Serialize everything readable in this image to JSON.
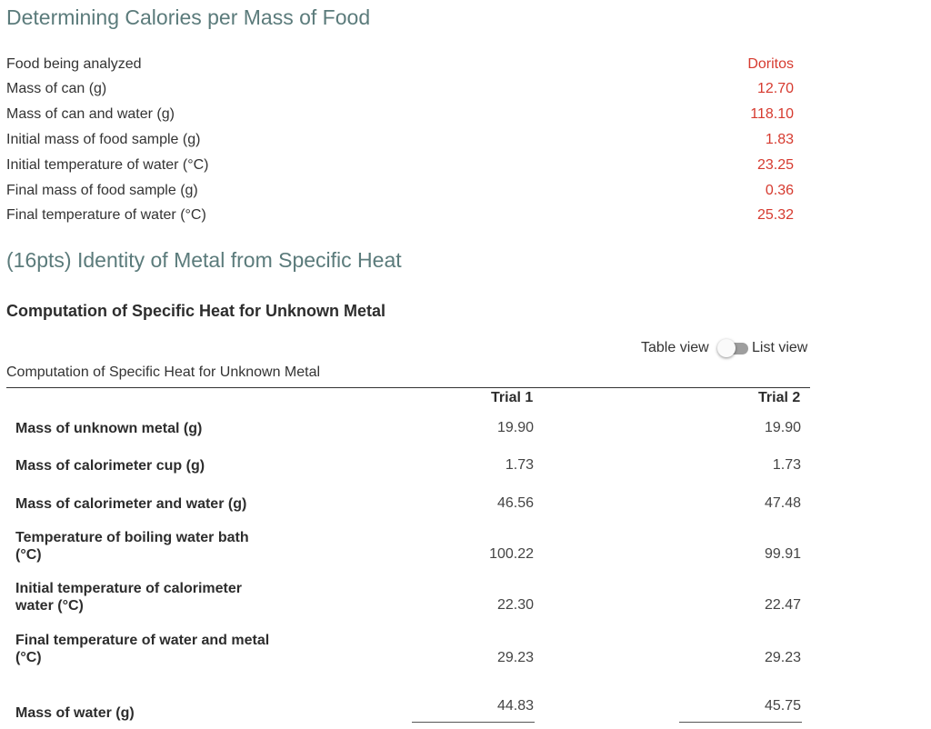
{
  "calories": {
    "title": "Determining Calories per Mass of Food",
    "rows": [
      {
        "label": "Food being analyzed",
        "value": "Doritos"
      },
      {
        "label": "Mass of can (g)",
        "value": "12.70"
      },
      {
        "label": "Mass of can and water (g)",
        "value": "118.10"
      },
      {
        "label": "Initial mass of food sample (g)",
        "value": "1.83"
      },
      {
        "label": "Initial temperature of water (°C)",
        "value": "23.25"
      },
      {
        "label": "Final mass of food sample (g)",
        "value": "0.36"
      },
      {
        "label": "Final temperature of water (°C)",
        "value": "25.32"
      }
    ],
    "value_color": "#d63a2f"
  },
  "metal": {
    "title": "(16pts) Identity of Metal from Specific Heat",
    "subtitle": "Computation of Specific Heat for Unknown Metal",
    "toggle": {
      "left_label": "Table view",
      "right_label": "List view"
    },
    "table": {
      "caption": "Computation of Specific Heat for Unknown Metal",
      "columns": [
        "Trial 1",
        "Trial 2"
      ],
      "rows": [
        {
          "label": "Mass of unknown metal (g)",
          "trial1": "19.90",
          "trial2": "19.90"
        },
        {
          "label": "Mass of calorimeter cup (g)",
          "trial1": "1.73",
          "trial2": "1.73"
        },
        {
          "label": "Mass of calorimeter and water (g)",
          "trial1": "46.56",
          "trial2": "47.48"
        },
        {
          "label": "Temperature of boiling water bath (°C)",
          "trial1": "100.22",
          "trial2": "99.91"
        },
        {
          "label": "Initial temperature of calorimeter water (°C)",
          "trial1": "22.30",
          "trial2": "22.47"
        },
        {
          "label": "Final temperature of water and metal (°C)",
          "trial1": "29.23",
          "trial2": "29.23"
        },
        {
          "label": "Mass of water (g)",
          "trial1": "44.83",
          "trial2": "45.75"
        }
      ]
    }
  }
}
